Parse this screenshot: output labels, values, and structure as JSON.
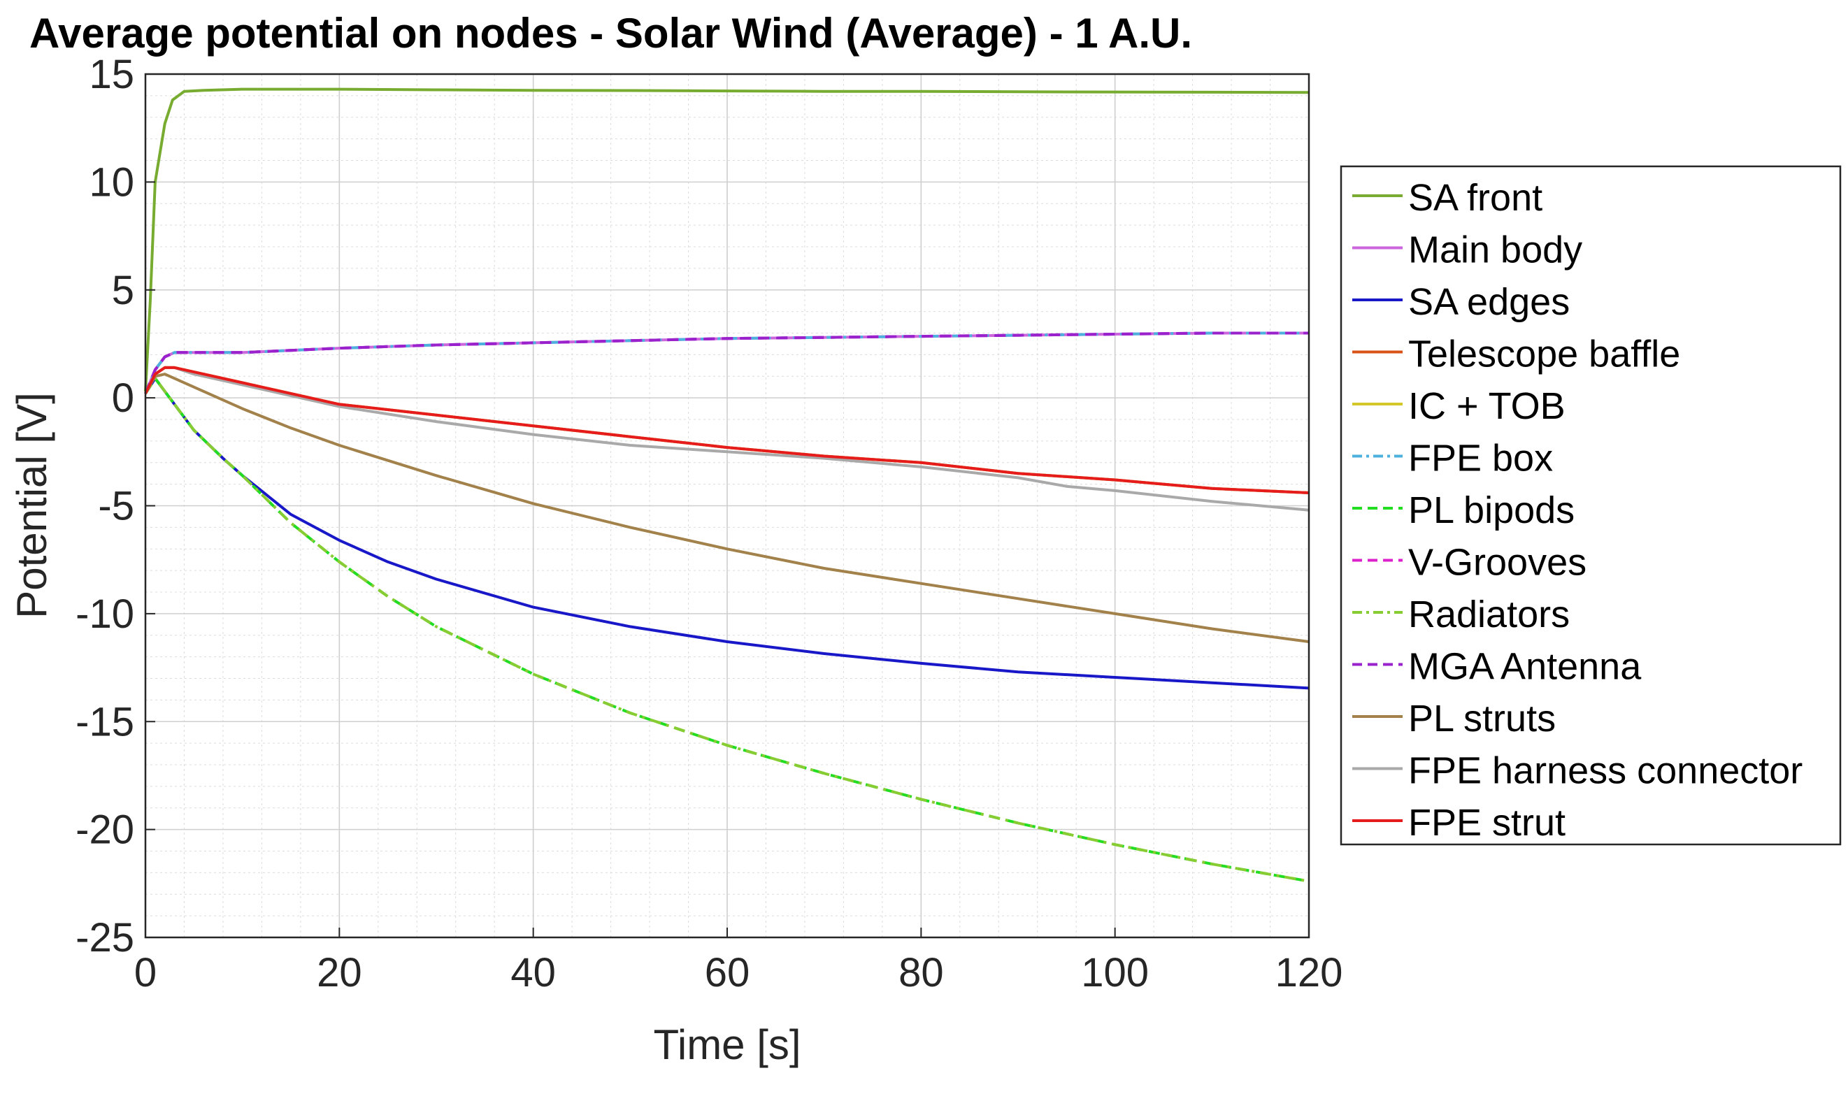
{
  "chart_data": {
    "type": "line",
    "title": "Average potential on nodes - Solar Wind (Average) - 1 A.U.",
    "xlabel": "Time [s]",
    "ylabel": "Potential [V]",
    "xlim": [
      0,
      120
    ],
    "ylim": [
      -25,
      15
    ],
    "xticks": [
      0,
      20,
      40,
      60,
      80,
      100,
      120
    ],
    "yticks": [
      15,
      10,
      5,
      0,
      -5,
      -10,
      -15,
      -20,
      -25
    ],
    "xtick_labels": [
      "0",
      "20",
      "40",
      "60",
      "80",
      "100",
      "120"
    ],
    "ytick_labels": [
      "15",
      "10",
      "5",
      "0",
      "-5",
      "-10",
      "-15",
      "-20",
      "-25"
    ],
    "grid": true,
    "minor_grid": true,
    "legend_position": "right",
    "series": [
      {
        "name": "SA front",
        "color": "#77ac30",
        "style": "solid",
        "x": [
          0,
          0.5,
          1,
          2,
          2.8,
          4,
          6,
          10,
          20,
          30,
          40,
          50,
          60,
          70,
          80,
          90,
          100,
          110,
          120
        ],
        "y": [
          0.3,
          4.5,
          10.0,
          12.7,
          13.8,
          14.2,
          14.25,
          14.3,
          14.3,
          14.27,
          14.25,
          14.24,
          14.22,
          14.2,
          14.2,
          14.18,
          14.17,
          14.16,
          14.15
        ]
      },
      {
        "name": "Main body",
        "color": "#cc66dd",
        "style": "solid",
        "x": [
          0,
          1,
          2,
          3,
          5,
          10,
          20,
          30,
          40,
          50,
          60,
          70,
          80,
          90,
          100,
          110,
          120
        ],
        "y": [
          0.2,
          1.3,
          1.9,
          2.1,
          2.1,
          2.1,
          2.3,
          2.45,
          2.55,
          2.65,
          2.75,
          2.8,
          2.85,
          2.9,
          2.95,
          3.0,
          3.0
        ]
      },
      {
        "name": "SA edges",
        "color": "#1818c8",
        "style": "solid",
        "x": [
          0,
          1,
          3,
          5,
          8,
          10,
          15,
          20,
          25,
          30,
          40,
          50,
          60,
          70,
          80,
          90,
          100,
          110,
          120
        ],
        "y": [
          0.2,
          0.9,
          -0.3,
          -1.5,
          -2.8,
          -3.6,
          -5.4,
          -6.6,
          -7.6,
          -8.4,
          -9.7,
          -10.6,
          -11.3,
          -11.85,
          -12.3,
          -12.7,
          -12.95,
          -13.2,
          -13.45
        ]
      },
      {
        "name": "Telescope baffle",
        "color": "#d95319",
        "style": "solid",
        "x": [
          0,
          1,
          2,
          3,
          5,
          10,
          20,
          30,
          40,
          50,
          60,
          70,
          80,
          90,
          100,
          110,
          120
        ],
        "y": [
          0.2,
          1.1,
          1.4,
          1.4,
          1.2,
          0.7,
          -0.3,
          -0.8,
          -1.3,
          -1.8,
          -2.3,
          -2.7,
          -3.0,
          -3.5,
          -3.8,
          -4.2,
          -4.4
        ]
      },
      {
        "name": "IC + TOB",
        "color": "#d4c72a",
        "style": "solid",
        "x": [
          0,
          1,
          2,
          3,
          5,
          10,
          20,
          30,
          40,
          50,
          60,
          70,
          80,
          90,
          100,
          110,
          120
        ],
        "y": [
          0.2,
          1.1,
          1.4,
          1.4,
          1.2,
          0.7,
          -0.3,
          -0.8,
          -1.3,
          -1.8,
          -2.3,
          -2.7,
          -3.0,
          -3.5,
          -3.8,
          -4.2,
          -4.4
        ]
      },
      {
        "name": "FPE box",
        "color": "#4db0dd",
        "style": "dashdot",
        "x": [
          0,
          1,
          2,
          3,
          5,
          10,
          20,
          30,
          40,
          50,
          60,
          70,
          80,
          90,
          100,
          110,
          120
        ],
        "y": [
          0.2,
          1.3,
          1.9,
          2.1,
          2.1,
          2.1,
          2.3,
          2.45,
          2.55,
          2.65,
          2.75,
          2.8,
          2.85,
          2.9,
          2.95,
          3.0,
          3.0
        ]
      },
      {
        "name": "PL bipods",
        "color": "#22dd22",
        "style": "dashed",
        "x": [
          0,
          1,
          3,
          5,
          8,
          10,
          15,
          20,
          25,
          30,
          40,
          50,
          60,
          70,
          80,
          90,
          100,
          110,
          120
        ],
        "y": [
          0.2,
          0.9,
          -0.3,
          -1.5,
          -2.8,
          -3.6,
          -5.8,
          -7.6,
          -9.2,
          -10.6,
          -12.8,
          -14.6,
          -16.1,
          -17.4,
          -18.6,
          -19.7,
          -20.7,
          -21.6,
          -22.4
        ]
      },
      {
        "name": "V-Grooves",
        "color": "#dd22cc",
        "style": "dashed",
        "x": [
          0,
          1,
          2,
          3,
          5,
          10,
          20,
          30,
          40,
          50,
          60,
          70,
          80,
          90,
          100,
          110,
          120
        ],
        "y": [
          0.2,
          1.3,
          1.9,
          2.1,
          2.1,
          2.1,
          2.3,
          2.45,
          2.55,
          2.65,
          2.75,
          2.8,
          2.85,
          2.9,
          2.95,
          3.0,
          3.0
        ]
      },
      {
        "name": "Radiators",
        "color": "#88cc33",
        "style": "dashdot",
        "x": [
          0,
          1,
          3,
          5,
          8,
          10,
          15,
          20,
          25,
          30,
          40,
          50,
          60,
          70,
          80,
          90,
          100,
          110,
          120
        ],
        "y": [
          0.2,
          0.9,
          -0.3,
          -1.5,
          -2.8,
          -3.6,
          -5.8,
          -7.6,
          -9.2,
          -10.6,
          -12.8,
          -14.6,
          -16.1,
          -17.4,
          -18.6,
          -19.7,
          -20.7,
          -21.6,
          -22.4
        ]
      },
      {
        "name": "MGA Antenna",
        "color": "#9922cc",
        "style": "dashed",
        "x": [
          0,
          1,
          2,
          3,
          5,
          10,
          20,
          30,
          40,
          50,
          60,
          70,
          80,
          90,
          100,
          110,
          120
        ],
        "y": [
          0.2,
          1.3,
          1.9,
          2.1,
          2.1,
          2.1,
          2.3,
          2.45,
          2.55,
          2.65,
          2.75,
          2.8,
          2.85,
          2.9,
          2.95,
          3.0,
          3.0
        ]
      },
      {
        "name": "PL struts",
        "color": "#a2814a",
        "style": "solid",
        "x": [
          0,
          1,
          2,
          3,
          5,
          8,
          10,
          15,
          20,
          25,
          30,
          40,
          50,
          60,
          70,
          80,
          90,
          100,
          110,
          120
        ],
        "y": [
          0.2,
          1.0,
          1.1,
          0.9,
          0.5,
          -0.1,
          -0.5,
          -1.4,
          -2.2,
          -2.9,
          -3.6,
          -4.9,
          -6.0,
          -7.0,
          -7.9,
          -8.6,
          -9.3,
          -10.0,
          -10.7,
          -11.3
        ]
      },
      {
        "name": "FPE harness connector",
        "color": "#a9a9a9",
        "style": "solid",
        "x": [
          0,
          1,
          2,
          3,
          5,
          10,
          20,
          30,
          40,
          50,
          60,
          70,
          80,
          90,
          95,
          100,
          110,
          120
        ],
        "y": [
          0.2,
          1.1,
          1.4,
          1.4,
          1.1,
          0.6,
          -0.4,
          -1.1,
          -1.7,
          -2.2,
          -2.5,
          -2.8,
          -3.2,
          -3.7,
          -4.1,
          -4.3,
          -4.8,
          -5.2
        ]
      },
      {
        "name": "FPE strut",
        "color": "#e61c1c",
        "style": "solid",
        "x": [
          0,
          1,
          2,
          3,
          5,
          10,
          20,
          30,
          40,
          50,
          60,
          70,
          80,
          90,
          100,
          110,
          120
        ],
        "y": [
          0.2,
          1.1,
          1.4,
          1.4,
          1.2,
          0.7,
          -0.3,
          -0.8,
          -1.3,
          -1.8,
          -2.3,
          -2.7,
          -3.0,
          -3.5,
          -3.8,
          -4.2,
          -4.4
        ]
      }
    ]
  }
}
